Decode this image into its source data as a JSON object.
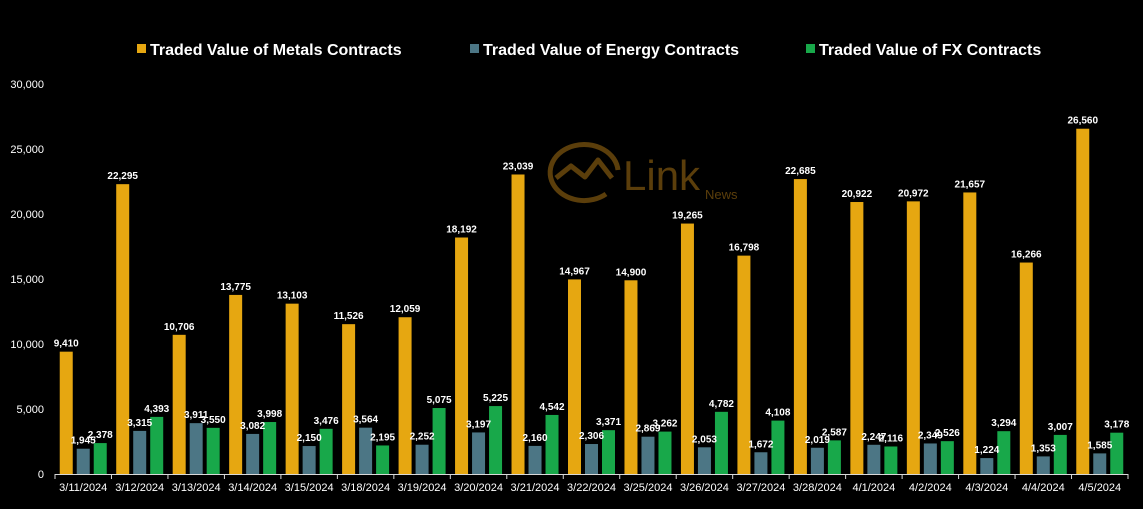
{
  "chart_data": {
    "type": "bar",
    "categories": [
      "3/11/2024",
      "3/12/2024",
      "3/13/2024",
      "3/14/2024",
      "3/15/2024",
      "3/18/2024",
      "3/19/2024",
      "3/20/2024",
      "3/21/2024",
      "3/22/2024",
      "3/25/2024",
      "3/26/2024",
      "3/27/2024",
      "3/28/2024",
      "4/1/2024",
      "4/2/2024",
      "4/3/2024",
      "4/4/2024",
      "4/5/2024"
    ],
    "series": [
      {
        "name": "Traded Value of Metals Contracts",
        "color": "#E6A711",
        "values": [
          9410,
          22295,
          10706,
          13775,
          13103,
          11526,
          12059,
          18192,
          23039,
          14967,
          14900,
          19265,
          16798,
          22685,
          20922,
          20972,
          21657,
          16266,
          26560
        ]
      },
      {
        "name": "Traded Value of Energy Contracts",
        "color": "#4C7685",
        "values": [
          1945,
          3315,
          3911,
          3082,
          2150,
          3564,
          2252,
          3197,
          2160,
          2306,
          2869,
          2053,
          1672,
          2019,
          2247,
          2349,
          1224,
          1353,
          1585
        ]
      },
      {
        "name": "Traded Value of FX Contracts",
        "color": "#18A84A",
        "values": [
          2378,
          4393,
          3550,
          3998,
          3476,
          2195,
          5075,
          5225,
          4542,
          3371,
          3262,
          4782,
          4108,
          2587,
          2116,
          2526,
          3294,
          3007,
          3178
        ]
      }
    ],
    "ylim": [
      0,
      30000
    ],
    "yticks": [
      0,
      5000,
      10000,
      15000,
      20000,
      25000,
      30000
    ],
    "ytick_labels": [
      "0",
      "5,000",
      "10,000",
      "15,000",
      "20,000",
      "25,000",
      "30,000"
    ],
    "legend_position": "top-center",
    "grid": false
  },
  "watermark": {
    "brand": "Link",
    "sub": "News"
  }
}
